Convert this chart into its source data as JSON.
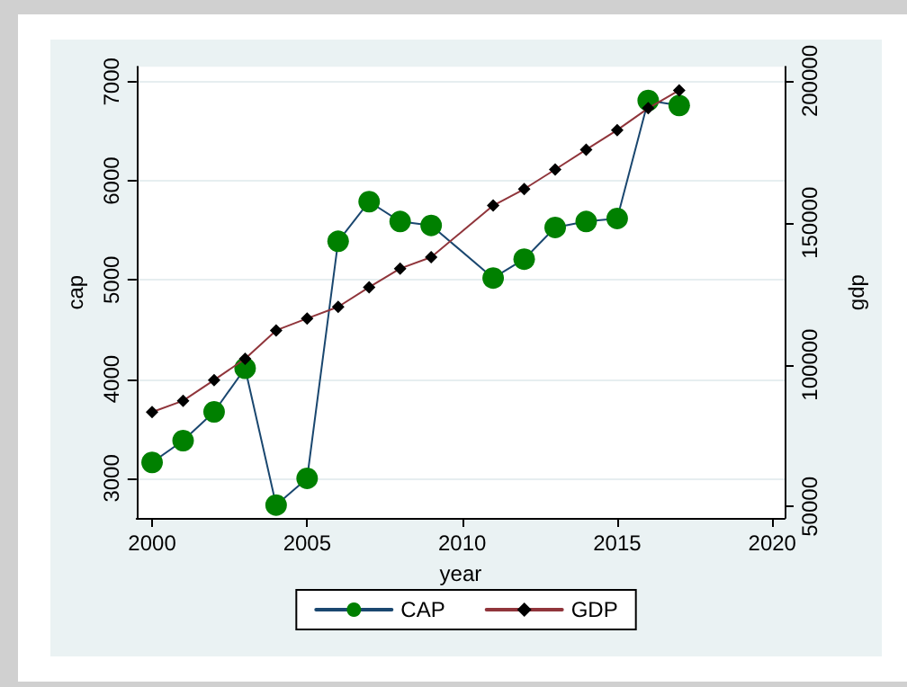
{
  "chart_data": {
    "type": "line",
    "xlabel": "year",
    "ylabel": "cap",
    "y2label": "gdp",
    "x": [
      2000,
      2001,
      2002,
      2003,
      2004,
      2005,
      2006,
      2007,
      2008,
      2009,
      2011,
      2012,
      2013,
      2014,
      2015,
      2016,
      2017
    ],
    "series": [
      {
        "name": "CAP",
        "color": "#008000",
        "marker": "circle",
        "values": [
          3160,
          3380,
          3670,
          4110,
          2730,
          3000,
          5390,
          5790,
          5590,
          5550,
          5020,
          5210,
          5530,
          5590,
          5620,
          6810,
          6760
        ]
      },
      {
        "name": "GDP",
        "color": "#000000",
        "marker": "diamond",
        "axis": "y2",
        "values": [
          83300,
          87300,
          94600,
          102100,
          112100,
          116300,
          120400,
          127300,
          133900,
          137900,
          156100,
          161900,
          168800,
          175800,
          182700,
          190400,
          196700
        ]
      }
    ],
    "xlim": [
      1999.5,
      2020.4
    ],
    "xticks": [
      2000,
      2005,
      2010,
      2015,
      2020
    ],
    "ylim": [
      2600,
      7150
    ],
    "yticks": [
      3000,
      4000,
      5000,
      6000,
      7000
    ],
    "y2lim": [
      46000,
      205000
    ],
    "y2ticks": [
      50000,
      100000,
      150000,
      200000
    ],
    "grid": "y",
    "legend": "bottom"
  }
}
